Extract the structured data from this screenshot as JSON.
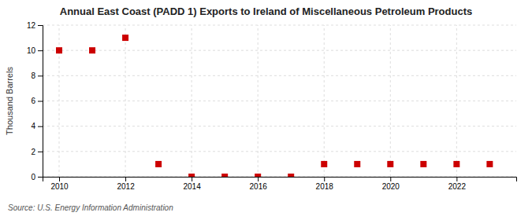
{
  "chart_data": {
    "type": "scatter",
    "title": "Annual East Coast (PADD 1) Exports to Ireland of Miscellaneous Petroleum Products",
    "ylabel": "Thousand Barrels",
    "annotations": [
      "Source: U.S. Energy Information Administration"
    ],
    "x": [
      2010,
      2011,
      2012,
      2013,
      2014,
      2015,
      2016,
      2017,
      2018,
      2019,
      2020,
      2021,
      2022,
      2023
    ],
    "values": [
      10,
      10,
      11,
      1,
      0,
      0,
      0,
      0,
      1,
      1,
      1,
      1,
      1,
      1
    ],
    "color": "#cc0000",
    "marker": "square",
    "xlim": [
      2009.5,
      2023.8
    ],
    "ylim": [
      0,
      12
    ],
    "xticks": [
      2010,
      2012,
      2014,
      2016,
      2018,
      2020,
      2022
    ],
    "yticks": [
      0,
      2,
      4,
      6,
      8,
      10,
      12
    ],
    "grid": true
  }
}
